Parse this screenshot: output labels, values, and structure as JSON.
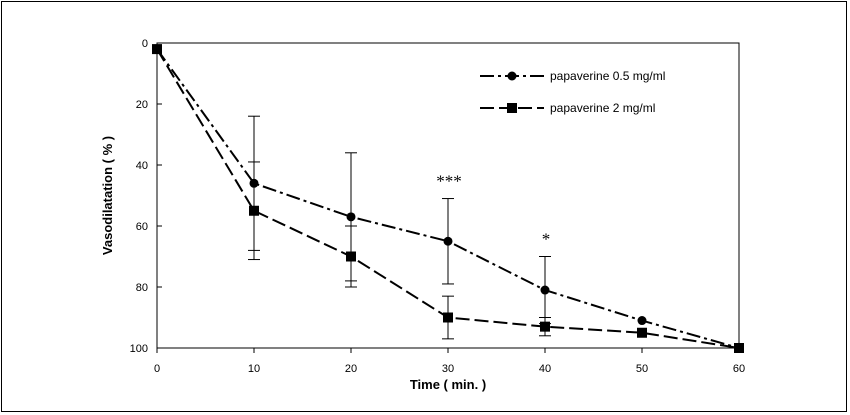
{
  "chart_data": {
    "type": "line",
    "xlabel": "Time ( min. )",
    "ylabel": "Vasodilatation ( % )",
    "xlim": [
      0,
      60
    ],
    "ylim": [
      0,
      100
    ],
    "y_inverted": true,
    "x_ticks": [
      0,
      10,
      20,
      30,
      40,
      50,
      60
    ],
    "y_ticks": [
      0,
      20,
      40,
      60,
      80,
      100
    ],
    "x_tick_labels": [
      "0",
      "10",
      "20",
      "30",
      "40",
      "50",
      "60"
    ],
    "y_tick_labels": [
      "0",
      "20",
      "40",
      "60",
      "80",
      "100"
    ],
    "grid": false,
    "legend_position": "top-right",
    "x": [
      0,
      10,
      20,
      30,
      40,
      50,
      60
    ],
    "series": [
      {
        "name": "papaverine 0.5 mg/ml",
        "marker": "circle",
        "line_style": "dash-dot",
        "values": [
          2,
          46,
          57,
          65,
          81,
          91,
          100
        ],
        "error": [
          null,
          22,
          21,
          14,
          11,
          null,
          null
        ]
      },
      {
        "name": "papaverine 2 mg/ml",
        "marker": "square",
        "line_style": "dashed",
        "values": [
          2,
          55,
          70,
          90,
          93,
          95,
          100
        ],
        "error": [
          null,
          16,
          10,
          7,
          3,
          null,
          null
        ]
      }
    ],
    "annotations": [
      {
        "text": "***",
        "x": 30
      },
      {
        "text": "*",
        "x": 40
      }
    ],
    "line_color": "#000000"
  }
}
